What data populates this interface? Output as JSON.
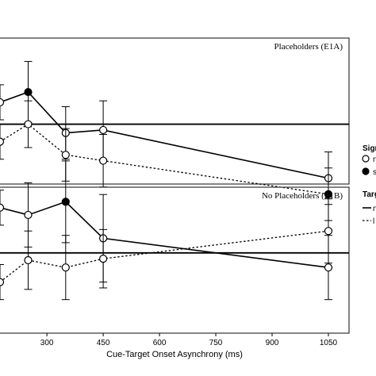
{
  "chart_data": {
    "type": "line",
    "xlabel": "Cue-Target Onset Asynchrony (ms)",
    "x_ticks": [
      300,
      450,
      600,
      750,
      900,
      1050
    ],
    "x_tick_labels": [
      "300",
      "450",
      "600",
      "750",
      "900",
      "1050"
    ],
    "xlim": [
      175,
      1105
    ],
    "legend": {
      "signal_title": "Signa",
      "signal_items": [
        "n",
        "s"
      ],
      "target_title": "Targe",
      "target_items": [
        "n",
        "l"
      ]
    },
    "panels": [
      {
        "title": "Placeholders (E1A)",
        "ylim": [
          0,
          100
        ],
        "reference_y": 41,
        "series": [
          {
            "style": "solid",
            "x": [
              175,
              250,
              350,
              450,
              1050
            ],
            "y": [
              56,
              63,
              35,
              37,
              4
            ],
            "err": [
              12,
              21,
              18,
              20,
              18
            ],
            "filled": [
              false,
              true,
              false,
              false,
              false
            ]
          },
          {
            "style": "dotted",
            "x": [
              175,
              250,
              350,
              450,
              1050
            ],
            "y": [
              29,
              41,
              20,
              16,
              -7
            ],
            "err": [
              12,
              16,
              18,
              18,
              18
            ],
            "filled": [
              false,
              false,
              false,
              false,
              true
            ]
          }
        ]
      },
      {
        "title": "No Placeholders (E1B)",
        "ylim": [
          0,
          100
        ],
        "reference_y": 55,
        "series": [
          {
            "style": "solid",
            "x": [
              175,
              250,
              350,
              450,
              1050
            ],
            "y": [
              86,
              81,
              90,
              65,
              45
            ],
            "err": [
              12,
              22,
              28,
              30,
              22
            ],
            "filled": [
              false,
              false,
              true,
              false,
              false
            ]
          },
          {
            "style": "dotted",
            "x": [
              175,
              250,
              350,
              450,
              1050
            ],
            "y": [
              35,
              50,
              45,
              51,
              70
            ],
            "err": [
              12,
              20,
              22,
              20,
              22
            ],
            "filled": [
              false,
              false,
              false,
              false,
              false
            ]
          }
        ]
      }
    ]
  }
}
